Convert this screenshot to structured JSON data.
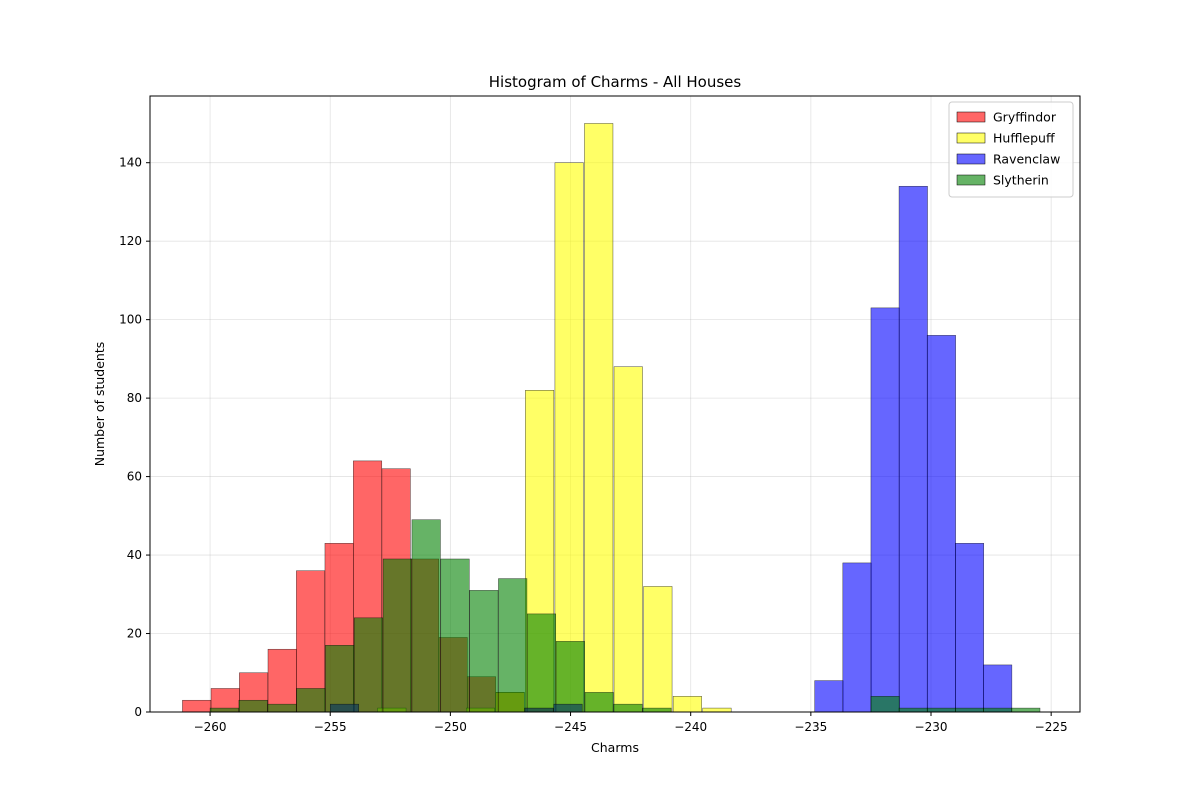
{
  "chart_data": {
    "type": "bar",
    "title": "Histogram of Charms - All Houses",
    "xlabel": "Charms",
    "ylabel": "Number of students",
    "xlim": [
      -262.5,
      -223.8
    ],
    "ylim": [
      0,
      157
    ],
    "x_ticks": [
      -260,
      -255,
      -250,
      -245,
      -240,
      -235,
      -230,
      -225
    ],
    "y_ticks": [
      0,
      20,
      40,
      60,
      80,
      100,
      120,
      140
    ],
    "grid": true,
    "legend_position": "top-right",
    "bin_width": 1.185,
    "series": [
      {
        "name": "Gryffindor",
        "color": "#ff0000",
        "opacity": 0.6,
        "bin_starts": [
          -261.15,
          -259.96,
          -258.78,
          -257.59,
          -256.41,
          -255.22,
          -254.04,
          -252.85,
          -251.67,
          -250.48,
          -249.3,
          -248.11,
          -246.93,
          -245.74,
          -244.56,
          -243.37
        ],
        "counts": [
          3,
          6,
          10,
          16,
          36,
          43,
          64,
          62,
          39,
          19,
          9,
          5,
          1,
          0,
          0,
          0
        ]
      },
      {
        "name": "Hufflepuff",
        "color": "#ffff00",
        "opacity": 0.6,
        "bin_starts": [
          -253.03,
          -251.8,
          -250.57,
          -249.34,
          -248.11,
          -246.88,
          -245.65,
          -244.42,
          -243.19,
          -241.96,
          -240.73,
          -239.5
        ],
        "counts": [
          1,
          0,
          0,
          1,
          5,
          82,
          140,
          150,
          88,
          32,
          4,
          1
        ]
      },
      {
        "name": "Ravenclaw",
        "color": "#0000ff",
        "opacity": 0.6,
        "bin_starts": [
          -234.84,
          -233.67,
          -232.5,
          -231.33,
          -230.16,
          -228.99,
          -227.82
        ],
        "counts": [
          8,
          38,
          103,
          134,
          96,
          43,
          12
        ]
      },
      {
        "name": "Slytherin",
        "color": "#008000",
        "opacity": 0.6,
        "bins": [
          {
            "start": -260.0,
            "count": 1
          },
          {
            "start": -258.8,
            "count": 3
          },
          {
            "start": -257.6,
            "count": 2
          },
          {
            "start": -256.4,
            "count": 6
          },
          {
            "start": -255.2,
            "count": 17
          },
          {
            "start": -254.0,
            "count": 24
          },
          {
            "start": -252.8,
            "count": 39
          },
          {
            "start": -251.6,
            "count": 49
          },
          {
            "start": -250.4,
            "count": 39
          },
          {
            "start": -249.2,
            "count": 31
          },
          {
            "start": -248.0,
            "count": 34
          },
          {
            "start": -246.8,
            "count": 25
          },
          {
            "start": -245.6,
            "count": 18
          },
          {
            "start": -244.4,
            "count": 5
          },
          {
            "start": -243.2,
            "count": 2
          },
          {
            "start": -242.0,
            "count": 1
          },
          {
            "start": -232.5,
            "count": 4
          },
          {
            "start": -231.33,
            "count": 1
          },
          {
            "start": -230.16,
            "count": 1
          },
          {
            "start": -228.99,
            "count": 1
          },
          {
            "start": -227.82,
            "count": 1
          },
          {
            "start": -226.65,
            "count": 1
          }
        ]
      }
    ],
    "overlay_bins": [
      {
        "start": -255.0,
        "count": 2,
        "color": "#003366"
      },
      {
        "start": -246.9,
        "count": 1,
        "color": "#003366"
      },
      {
        "start": -245.7,
        "count": 2,
        "color": "#003366"
      }
    ]
  }
}
